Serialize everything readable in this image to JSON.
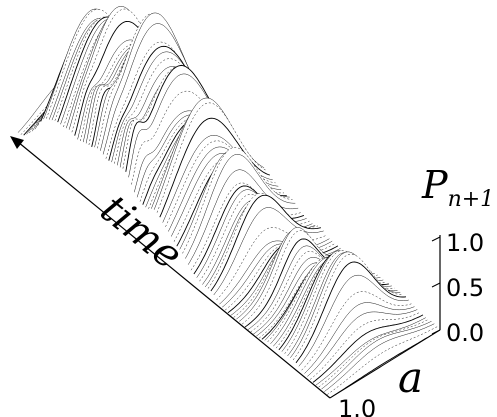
{
  "chart_data": {
    "type": "surface",
    "title": "",
    "xlabel": "time",
    "ylabel": "a",
    "zlabel": "P",
    "zlabel_sub": "n+1",
    "z_ticks": [
      "1.0",
      "0.5",
      "0.0"
    ],
    "a_ticks": [
      "1.0"
    ],
    "zlim": [
      0,
      1
    ],
    "grid": false,
    "colors": {
      "line": "#000000",
      "background": "#ffffff"
    }
  }
}
